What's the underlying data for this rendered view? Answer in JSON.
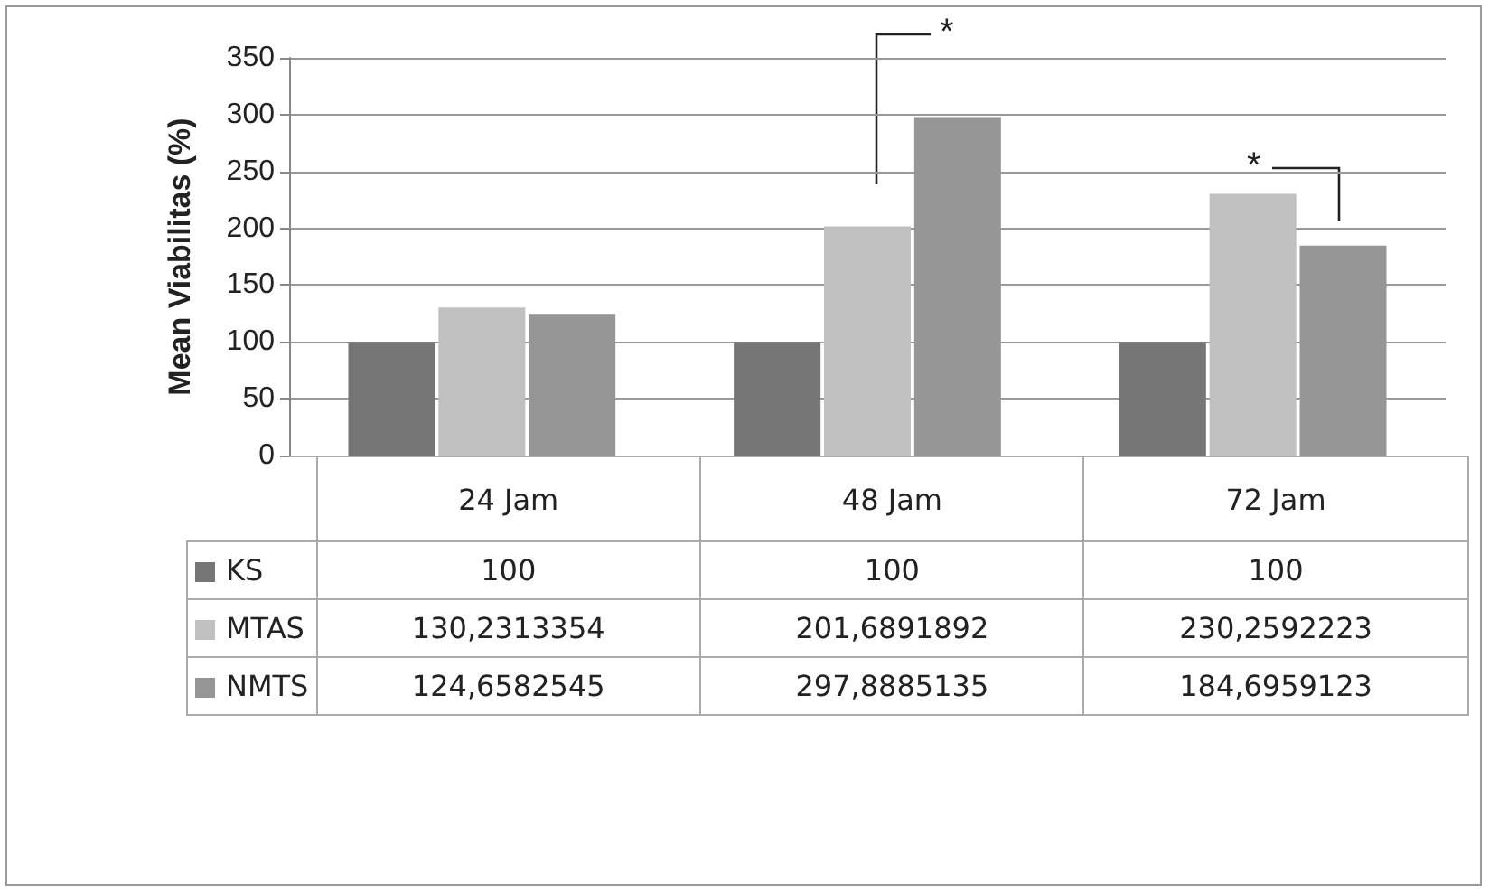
{
  "chart_data": {
    "type": "bar",
    "ylabel": "Mean Viabilitas (%)",
    "categories": [
      "24 Jam",
      "48 Jam",
      "72 Jam"
    ],
    "series": [
      {
        "name": "KS",
        "color": "#767676",
        "values": [
          100,
          100,
          100
        ],
        "value_labels": [
          "100",
          "100",
          "100"
        ]
      },
      {
        "name": "MTAS",
        "color": "#c0c0c0",
        "values": [
          130.2313354,
          201.6891892,
          230.2592223
        ],
        "value_labels": [
          "130,2313354",
          "201,6891892",
          "230,2592223"
        ]
      },
      {
        "name": "NMTS",
        "color": "#969696",
        "values": [
          124.6582545,
          297.8885135,
          184.6959123
        ],
        "value_labels": [
          "124,6582545",
          "297,8885135",
          "184,6959123"
        ]
      }
    ],
    "ylim": [
      0,
      350
    ],
    "yticks": [
      0,
      50,
      100,
      150,
      200,
      250,
      300,
      350
    ],
    "grid": "y",
    "legend": "bottom",
    "annotations": [
      "*",
      "*"
    ]
  }
}
